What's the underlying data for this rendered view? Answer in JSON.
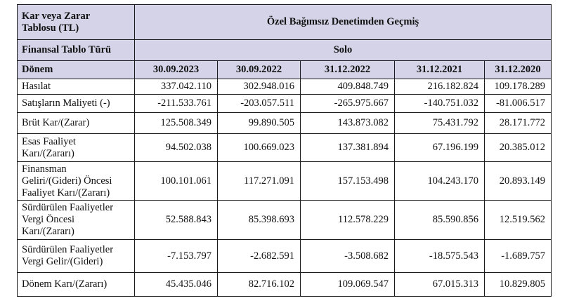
{
  "header": {
    "title_line1": "Kar veya Zarar",
    "title_line2": "Tablosu (TL)",
    "audit": "Özel Bağımsız Denetimden Geçmiş",
    "type_label": "Finansal Tablo Türü",
    "type_value": "Solo",
    "period_label": "Dönem",
    "periods": [
      "30.09.2023",
      "30.09.2022",
      "31.12.2022",
      "31.12.2021",
      "31.12.2020"
    ]
  },
  "rows": [
    {
      "label": [
        "Hasılat"
      ],
      "values": [
        "337.042.110",
        "302.948.016",
        "409.848.749",
        "216.182.824",
        "109.178.289"
      ]
    },
    {
      "label": [
        "Satışların Maliyeti (-)"
      ],
      "values": [
        "-211.533.761",
        "-203.057.511",
        "-265.975.667",
        "-140.751.032",
        "-81.006.517"
      ]
    },
    {
      "label": [
        "Brüt Kar/(Zarar)"
      ],
      "values": [
        "125.508.349",
        "99.890.505",
        "143.873.082",
        "75.431.792",
        "28.171.772"
      ]
    },
    {
      "label": [
        "Esas Faaliyet",
        "Karı/(Zararı)"
      ],
      "values": [
        "94.502.038",
        "100.669.023",
        "137.381.894",
        "67.196.199",
        "20.385.012"
      ]
    },
    {
      "label": [
        "Finansman",
        "Geliri/(Gideri) Öncesi",
        "Faaliyet Karı/(Zararı)"
      ],
      "values": [
        "100.101.061",
        "117.271.091",
        "157.153.498",
        "104.243.170",
        "20.893.149"
      ]
    },
    {
      "label": [
        "Sürdürülen Faaliyetler",
        "Vergi Öncesi",
        "Karı/(Zararı)"
      ],
      "values": [
        "52.588.843",
        "85.398.693",
        "112.578.229",
        "85.590.856",
        "12.519.562"
      ]
    },
    {
      "label": [
        "Sürdürülen Faaliyetler",
        "Vergi Gelir/(Gideri)"
      ],
      "values": [
        "-7.153.797",
        "-2.682.591",
        "-3.508.682",
        "-18.575.543",
        "-1.689.757"
      ]
    },
    {
      "label": [
        "Dönem Karı/(Zararı)"
      ],
      "values": [
        "45.435.046",
        "82.716.102",
        "109.069.547",
        "67.015.313",
        "10.829.805"
      ]
    }
  ]
}
